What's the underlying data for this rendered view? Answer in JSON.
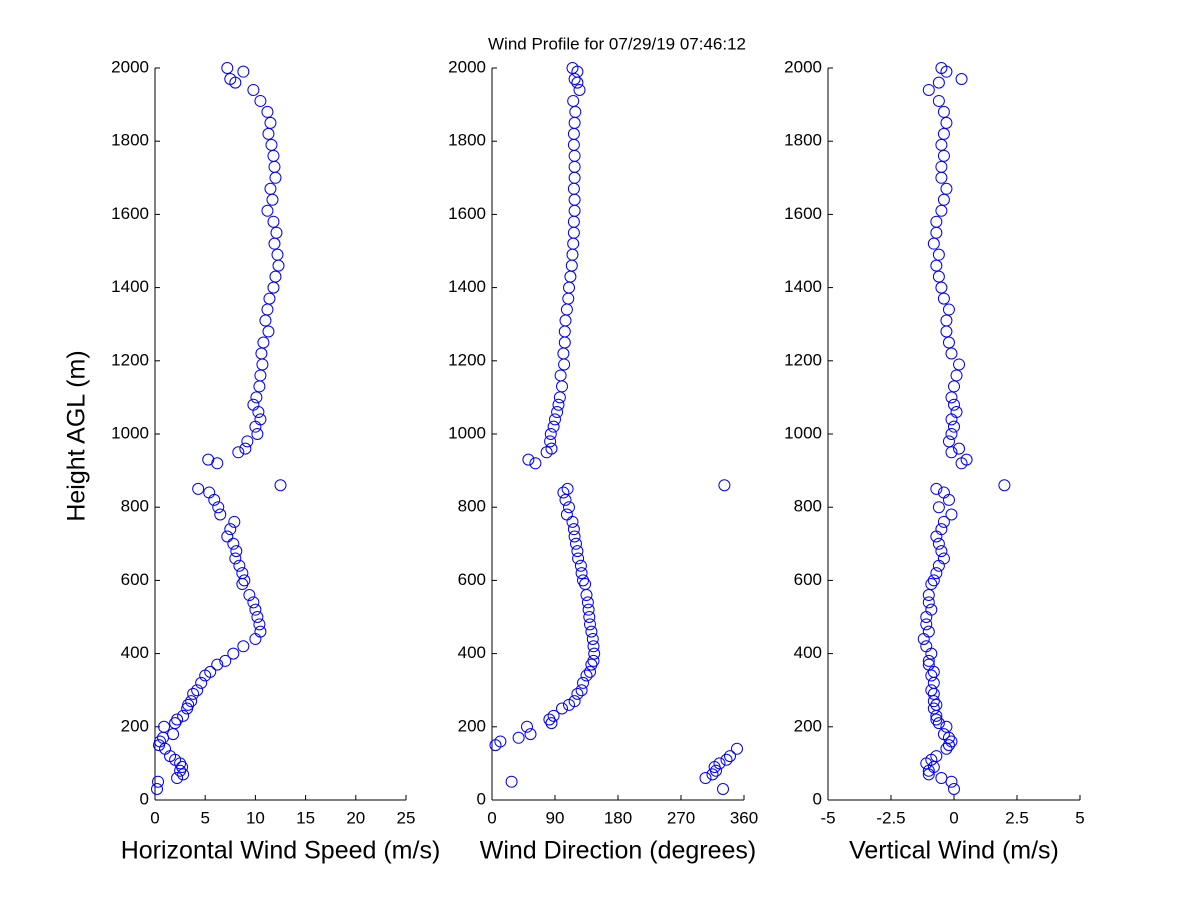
{
  "chart_data": [
    {
      "type": "scatter",
      "title": "Wind Profile for  07/29/19 07:46:12",
      "xlabel": "Horizontal Wind Speed (m/s)",
      "ylabel": "Height AGL (m)",
      "color": "#0000ff",
      "xlim": [
        0,
        25
      ],
      "xticks": [
        0,
        5,
        10,
        15,
        20,
        25
      ],
      "ylim": [
        0,
        2000
      ],
      "yticks": [
        0,
        200,
        400,
        600,
        800,
        1000,
        1200,
        1400,
        1600,
        1800,
        2000
      ],
      "x": [
        0.2,
        0.3,
        2.2,
        2.8,
        2.5,
        2.7,
        2.5,
        2.0,
        1.5,
        1.0,
        0.4,
        0.5,
        0.8,
        1.8,
        0.9,
        2.0,
        2.2,
        2.8,
        3.2,
        3.3,
        3.6,
        3.8,
        4.2,
        4.6,
        5.0,
        5.5,
        6.2,
        7.0,
        7.8,
        8.8,
        10.0,
        10.5,
        10.4,
        10.2,
        10.0,
        9.8,
        9.4,
        8.7,
        8.9,
        8.7,
        8.4,
        8.0,
        8.1,
        7.8,
        7.2,
        7.5,
        7.9,
        6.5,
        6.3,
        5.9,
        5.4,
        4.3,
        12.5,
        6.2,
        5.3,
        8.3,
        9.0,
        9.2,
        10.2,
        10.0,
        10.5,
        10.3,
        9.8,
        10.1,
        10.4,
        10.5,
        10.7,
        10.6,
        10.8,
        11.3,
        11.0,
        11.2,
        11.4,
        11.8,
        12.0,
        12.3,
        12.2,
        11.9,
        12.1,
        11.8,
        11.2,
        11.7,
        11.5,
        12.0,
        11.9,
        11.8,
        11.6,
        11.3,
        11.5,
        11.2,
        10.5,
        9.8,
        8.0,
        7.5,
        8.8,
        7.2
      ],
      "y": [
        30,
        50,
        60,
        70,
        80,
        90,
        100,
        110,
        120,
        140,
        150,
        160,
        170,
        180,
        200,
        210,
        220,
        230,
        250,
        260,
        270,
        290,
        300,
        320,
        340,
        350,
        370,
        380,
        400,
        420,
        440,
        460,
        480,
        500,
        520,
        540,
        560,
        590,
        600,
        620,
        640,
        660,
        680,
        700,
        720,
        740,
        760,
        780,
        800,
        820,
        840,
        850,
        860,
        920,
        930,
        950,
        960,
        980,
        1000,
        1020,
        1040,
        1060,
        1080,
        1100,
        1130,
        1160,
        1190,
        1220,
        1250,
        1280,
        1310,
        1340,
        1370,
        1400,
        1430,
        1460,
        1490,
        1520,
        1550,
        1580,
        1610,
        1640,
        1670,
        1700,
        1730,
        1760,
        1790,
        1820,
        1850,
        1880,
        1910,
        1940,
        1960,
        1970,
        1990,
        2000
      ]
    },
    {
      "type": "scatter",
      "xlabel": "Wind Direction (degrees)",
      "color": "#0000ff",
      "xlim": [
        0,
        360
      ],
      "xticks": [
        0,
        90,
        180,
        270,
        360
      ],
      "ylim": [
        0,
        2000
      ],
      "yticks": [
        0,
        200,
        400,
        600,
        800,
        1000,
        1200,
        1400,
        1600,
        1800,
        2000
      ],
      "x": [
        330,
        28,
        305,
        315,
        320,
        318,
        325,
        335,
        340,
        350,
        5,
        12,
        38,
        55,
        50,
        85,
        82,
        88,
        100,
        110,
        118,
        122,
        128,
        130,
        135,
        140,
        142,
        145,
        146,
        145,
        144,
        142,
        140,
        139,
        138,
        137,
        135,
        133,
        130,
        128,
        127,
        123,
        122,
        120,
        118,
        117,
        115,
        107,
        110,
        105,
        102,
        108,
        332,
        62,
        52,
        78,
        85,
        83,
        84,
        88,
        90,
        93,
        95,
        97,
        100,
        98,
        103,
        102,
        104,
        104,
        105,
        107,
        109,
        110,
        112,
        114,
        115,
        116,
        117,
        117,
        118,
        118,
        117,
        118,
        118,
        118,
        117,
        117,
        118,
        119,
        116,
        125,
        122,
        118,
        122,
        115
      ],
      "y": [
        30,
        50,
        60,
        70,
        80,
        90,
        100,
        110,
        120,
        140,
        150,
        160,
        170,
        180,
        200,
        210,
        220,
        230,
        250,
        260,
        270,
        290,
        300,
        320,
        340,
        350,
        370,
        380,
        400,
        420,
        440,
        460,
        480,
        500,
        520,
        540,
        560,
        590,
        600,
        620,
        640,
        660,
        680,
        700,
        720,
        740,
        760,
        780,
        800,
        820,
        840,
        850,
        860,
        920,
        930,
        950,
        960,
        980,
        1000,
        1020,
        1040,
        1060,
        1080,
        1100,
        1130,
        1160,
        1190,
        1220,
        1250,
        1280,
        1310,
        1340,
        1370,
        1400,
        1430,
        1460,
        1490,
        1520,
        1550,
        1580,
        1610,
        1640,
        1670,
        1700,
        1730,
        1760,
        1790,
        1820,
        1850,
        1880,
        1910,
        1940,
        1960,
        1970,
        1990,
        2000
      ]
    },
    {
      "type": "scatter",
      "xlabel": "Vertical Wind (m/s)",
      "color": "#0000ff",
      "xlim": [
        -5,
        5
      ],
      "xticks": [
        -5,
        -2.5,
        0,
        2.5,
        5
      ],
      "ylim": [
        0,
        2000
      ],
      "yticks": [
        0,
        200,
        400,
        600,
        800,
        1000,
        1200,
        1400,
        1600,
        1800,
        2000
      ],
      "x": [
        0,
        -0.1,
        -0.5,
        -1.0,
        -1.0,
        -0.8,
        -1.1,
        -0.9,
        -0.7,
        -0.3,
        -0.2,
        -0.1,
        -0.2,
        -0.4,
        -0.3,
        -0.6,
        -0.7,
        -0.7,
        -0.8,
        -0.7,
        -0.8,
        -0.8,
        -0.9,
        -0.8,
        -0.9,
        -0.8,
        -1.0,
        -1.0,
        -0.9,
        -1.1,
        -1.2,
        -1.0,
        -1.1,
        -1.1,
        -0.9,
        -1.0,
        -1.0,
        -0.9,
        -0.8,
        -0.7,
        -0.6,
        -0.4,
        -0.5,
        -0.6,
        -0.7,
        -0.5,
        -0.4,
        -0.1,
        -0.6,
        -0.2,
        -0.4,
        -0.7,
        2.0,
        0.3,
        0.5,
        -0.1,
        0.2,
        -0.2,
        -0.1,
        0,
        -0.1,
        0.1,
        0,
        -0.1,
        0,
        0.1,
        0.2,
        -0.1,
        -0.2,
        -0.3,
        -0.3,
        -0.2,
        -0.4,
        -0.5,
        -0.6,
        -0.7,
        -0.6,
        -0.8,
        -0.7,
        -0.7,
        -0.5,
        -0.4,
        -0.3,
        -0.5,
        -0.5,
        -0.4,
        -0.5,
        -0.4,
        -0.3,
        -0.4,
        -0.6,
        -1.0,
        -0.6,
        0.3,
        -0.3,
        -0.5
      ],
      "y": [
        30,
        50,
        60,
        70,
        80,
        90,
        100,
        110,
        120,
        140,
        150,
        160,
        170,
        180,
        200,
        210,
        220,
        230,
        250,
        260,
        270,
        290,
        300,
        320,
        340,
        350,
        370,
        380,
        400,
        420,
        440,
        460,
        480,
        500,
        520,
        540,
        560,
        590,
        600,
        620,
        640,
        660,
        680,
        700,
        720,
        740,
        760,
        780,
        800,
        820,
        840,
        850,
        860,
        920,
        930,
        950,
        960,
        980,
        1000,
        1020,
        1040,
        1060,
        1080,
        1100,
        1130,
        1160,
        1190,
        1220,
        1250,
        1280,
        1310,
        1340,
        1370,
        1400,
        1430,
        1460,
        1490,
        1520,
        1550,
        1580,
        1610,
        1640,
        1670,
        1700,
        1730,
        1760,
        1790,
        1820,
        1850,
        1880,
        1910,
        1940,
        1960,
        1970,
        1990,
        2000
      ]
    }
  ]
}
